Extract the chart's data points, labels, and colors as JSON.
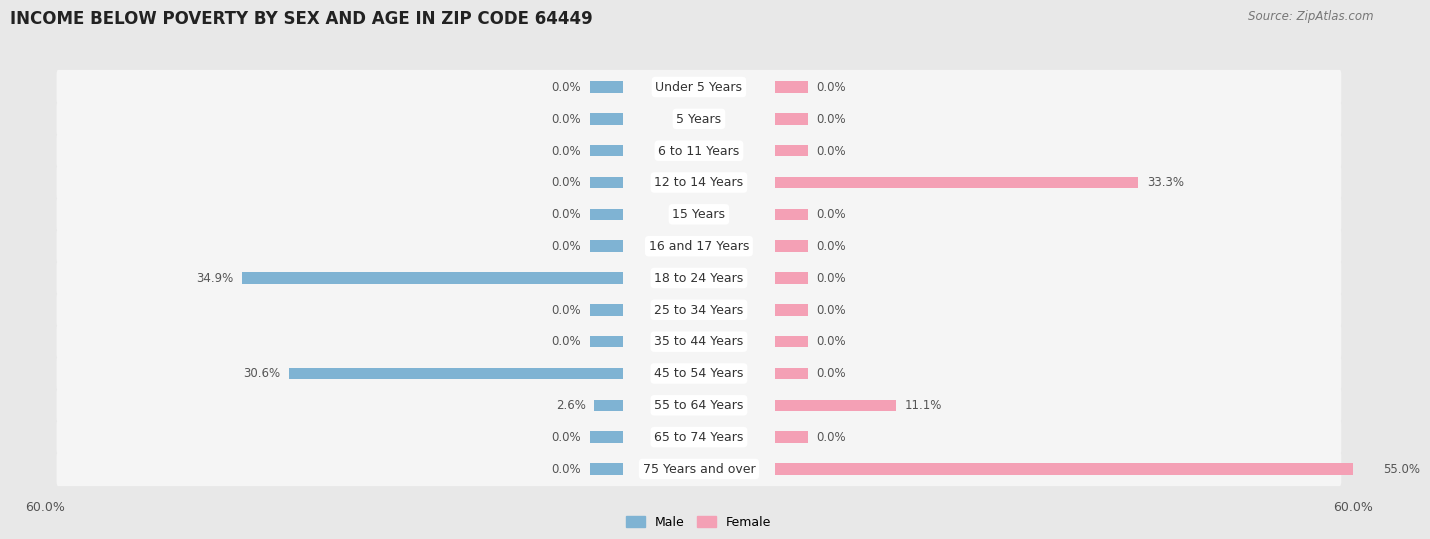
{
  "title": "INCOME BELOW POVERTY BY SEX AND AGE IN ZIP CODE 64449",
  "source": "Source: ZipAtlas.com",
  "categories": [
    "Under 5 Years",
    "5 Years",
    "6 to 11 Years",
    "12 to 14 Years",
    "15 Years",
    "16 and 17 Years",
    "18 to 24 Years",
    "25 to 34 Years",
    "35 to 44 Years",
    "45 to 54 Years",
    "55 to 64 Years",
    "65 to 74 Years",
    "75 Years and over"
  ],
  "male_values": [
    0.0,
    0.0,
    0.0,
    0.0,
    0.0,
    0.0,
    34.9,
    0.0,
    0.0,
    30.6,
    2.6,
    0.0,
    0.0
  ],
  "female_values": [
    0.0,
    0.0,
    0.0,
    33.3,
    0.0,
    0.0,
    0.0,
    0.0,
    0.0,
    0.0,
    11.1,
    0.0,
    55.0
  ],
  "male_color": "#7fb3d3",
  "female_color": "#f4a0b5",
  "male_label": "Male",
  "female_label": "Female",
  "xlim": 60.0,
  "background_color": "#e8e8e8",
  "row_color": "#f5f5f5",
  "title_fontsize": 12,
  "source_fontsize": 8.5,
  "label_fontsize": 8.5,
  "tick_fontsize": 9,
  "category_fontsize": 9,
  "min_bar": 3.0
}
